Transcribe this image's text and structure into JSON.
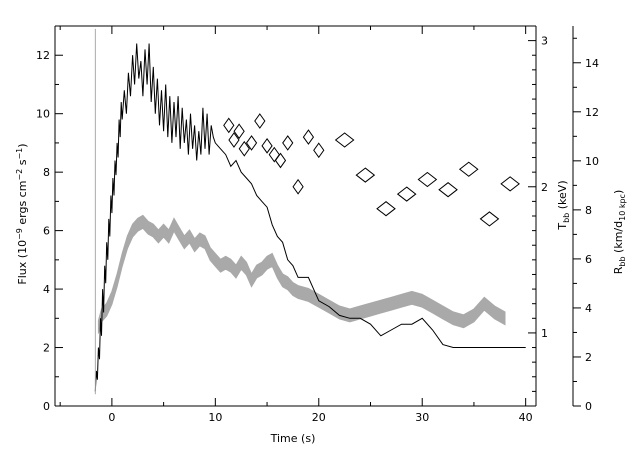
{
  "chart_data": {
    "type": "line",
    "xlabel": "Time (s)",
    "ylabel_left": {
      "main": "Flux (10",
      "exp1": "−9",
      "mid": " ergs cm",
      "exp2": "−2",
      "mid2": " s",
      "exp3": "−1",
      "end": ")"
    },
    "ylabel_right_inner": {
      "main": "T",
      "sub": "bb",
      "end": " (keV)"
    },
    "ylabel_right_outer": {
      "main": "R",
      "sub": "bb",
      "mid": " (km/d",
      "sub2": "10 kpc",
      "end": ")"
    },
    "xlim": [
      -5.5,
      41
    ],
    "ylim_left": [
      0,
      13
    ],
    "ylim_temp": [
      0.5,
      3.1
    ],
    "ylim_radius": [
      0,
      15.5
    ],
    "x_ticks": [
      0,
      10,
      20,
      30,
      40
    ],
    "y_ticks_left": [
      0,
      2,
      4,
      6,
      8,
      10,
      12
    ],
    "temp_ticks": [
      1,
      2,
      3
    ],
    "radius_ticks": [
      0,
      2,
      4,
      6,
      8,
      10,
      12,
      14
    ],
    "flux_series": {
      "name": "Flux",
      "color": "#000000",
      "x": [
        -1.6,
        -1.5,
        -1.4,
        -1.3,
        -1.2,
        -1.1,
        -1.0,
        -0.9,
        -0.8,
        -0.7,
        -0.6,
        -0.5,
        -0.4,
        -0.3,
        -0.2,
        -0.1,
        0.0,
        0.1,
        0.2,
        0.3,
        0.4,
        0.5,
        0.6,
        0.7,
        0.8,
        0.9,
        1.0,
        1.2,
        1.4,
        1.6,
        1.8,
        2.0,
        2.2,
        2.4,
        2.6,
        2.8,
        3.0,
        3.2,
        3.4,
        3.6,
        3.8,
        4.0,
        4.2,
        4.4,
        4.6,
        4.8,
        5.0,
        5.2,
        5.4,
        5.6,
        5.8,
        6.0,
        6.2,
        6.4,
        6.6,
        6.8,
        7.0,
        7.2,
        7.4,
        7.6,
        7.8,
        8.0,
        8.2,
        8.4,
        8.6,
        8.8,
        9.0,
        9.2,
        9.4,
        9.6,
        9.8,
        10.0,
        10.5,
        11.0,
        11.5,
        12.0,
        12.5,
        13.0,
        13.5,
        14.0,
        14.5,
        15.0,
        15.5,
        16.0,
        16.5,
        17.0,
        17.5,
        18.0,
        19.0,
        20.0,
        21.0,
        22.0,
        23.0,
        24.0,
        25.0,
        26.0,
        27.0,
        28.0,
        29.0,
        30.0,
        31.0,
        32.0,
        33.0,
        34.0,
        35.0,
        36.0,
        37.0,
        38.0,
        39.0,
        40.0
      ],
      "y": [
        0.5,
        1.2,
        0.9,
        2.0,
        1.6,
        3.0,
        2.4,
        4.0,
        3.2,
        4.8,
        4.2,
        5.6,
        5.0,
        6.4,
        5.8,
        7.2,
        6.6,
        7.8,
        7.2,
        8.4,
        7.9,
        9.0,
        8.5,
        9.8,
        9.2,
        10.4,
        9.8,
        10.8,
        10.0,
        11.4,
        10.6,
        12.0,
        11.0,
        12.4,
        11.2,
        11.8,
        10.6,
        12.2,
        11.0,
        12.4,
        10.4,
        11.6,
        10.0,
        11.2,
        9.6,
        10.8,
        9.4,
        11.0,
        9.2,
        10.6,
        9.0,
        10.4,
        9.2,
        10.6,
        8.8,
        10.2,
        9.0,
        9.8,
        8.6,
        10.0,
        8.8,
        9.6,
        8.4,
        9.4,
        8.6,
        10.2,
        8.8,
        10.0,
        8.6,
        9.6,
        9.2,
        9.0,
        8.8,
        8.6,
        8.2,
        8.4,
        8.0,
        7.8,
        7.6,
        7.2,
        7.0,
        6.8,
        6.2,
        5.8,
        5.6,
        5.0,
        4.8,
        4.4,
        4.4,
        3.6,
        3.4,
        3.1,
        3.0,
        3.0,
        2.8,
        2.4,
        2.6,
        2.8,
        2.8,
        3.0,
        2.6,
        2.1,
        2.0,
        2.0,
        2.0,
        2.0,
        2.0,
        2.0,
        2.0,
        2.0
      ]
    },
    "temperature_series": {
      "name": "T_bb",
      "marker": "diamond",
      "x": [
        11.3,
        11.8,
        12.3,
        12.8,
        13.5,
        14.3,
        15.0,
        15.7,
        16.3,
        17.0,
        18.0,
        19.0,
        20.0,
        22.5,
        24.5,
        26.5,
        28.5,
        30.5,
        32.5,
        34.5,
        36.5,
        38.5
      ],
      "y": [
        2.42,
        2.32,
        2.38,
        2.26,
        2.3,
        2.45,
        2.28,
        2.22,
        2.18,
        2.3,
        2.0,
        2.34,
        2.25,
        2.32,
        2.08,
        1.85,
        1.95,
        2.05,
        1.98,
        2.12,
        1.78,
        2.02
      ]
    },
    "radius_band": {
      "name": "R_bb",
      "color": "#a9a9a9",
      "x": [
        -1.3,
        -1.0,
        -0.5,
        0.0,
        0.5,
        1.0,
        1.5,
        2.0,
        2.5,
        3.0,
        3.5,
        4.0,
        4.5,
        5.0,
        5.5,
        6.0,
        6.5,
        7.0,
        7.5,
        8.0,
        8.5,
        9.0,
        9.5,
        10.0,
        10.5,
        11.0,
        11.5,
        12.0,
        12.5,
        13.0,
        13.5,
        14.0,
        14.5,
        15.0,
        15.5,
        16.0,
        16.5,
        17.0,
        17.5,
        18.0,
        19.0,
        20.0,
        21.0,
        22.0,
        23.0,
        24.0,
        25.0,
        26.0,
        27.0,
        28.0,
        29.0,
        30.0,
        31.0,
        32.0,
        33.0,
        34.0,
        35.0,
        36.0,
        37.0,
        38.0
      ],
      "y": [
        2.7,
        3.1,
        3.3,
        3.7,
        4.3,
        5.0,
        5.6,
        6.0,
        6.2,
        6.3,
        6.1,
        6.0,
        5.8,
        6.0,
        5.8,
        6.2,
        5.9,
        5.6,
        5.8,
        5.5,
        5.7,
        5.6,
        5.2,
        5.0,
        4.8,
        4.9,
        4.8,
        4.6,
        4.9,
        4.7,
        4.3,
        4.6,
        4.7,
        4.9,
        5.0,
        4.6,
        4.3,
        4.2,
        4.0,
        3.9,
        3.8,
        3.6,
        3.4,
        3.2,
        3.1,
        3.2,
        3.3,
        3.4,
        3.5,
        3.6,
        3.7,
        3.6,
        3.4,
        3.2,
        3.0,
        2.9,
        3.1,
        3.5,
        3.2,
        3.0
      ],
      "halfwidth": 0.22
    }
  }
}
